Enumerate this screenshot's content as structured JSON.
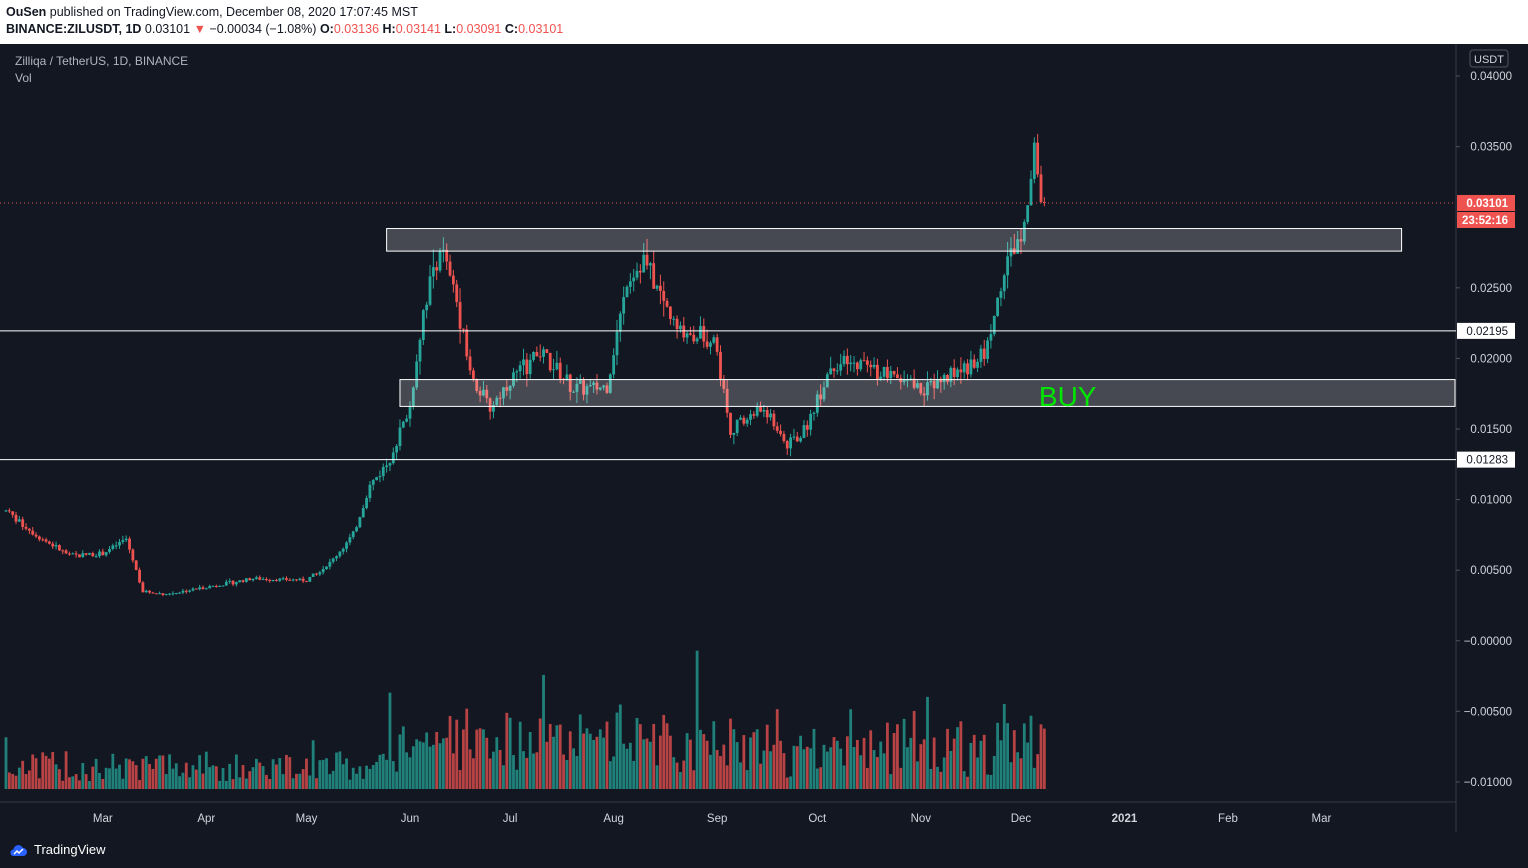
{
  "header": {
    "publisher": "OuSen",
    "publish_text": "published on TradingView.com, December 08, 2020 17:07:45 MST",
    "symbol": "BINANCE:ZILUSDT, 1D",
    "last": "0.03101",
    "arrow": "▼",
    "change": "−0.00034 (−1.08%)",
    "o_label": "O:",
    "o_val": "0.03136",
    "h_label": "H:",
    "h_val": "0.03141",
    "l_label": "L:",
    "l_val": "0.03091",
    "c_label": "C:",
    "c_val": "0.03101"
  },
  "legend": {
    "title": "Zilliqa / TetherUS, 1D, BINANCE",
    "vol": "Vol"
  },
  "footer": {
    "brand": "TradingView"
  },
  "colors": {
    "up": "#26a69a",
    "down": "#ef5350",
    "buy": "#00e600",
    "bg": "#131722",
    "axis_text": "#d1d4dc"
  },
  "chart_data": {
    "type": "candlestick",
    "currency": "USDT",
    "y_ticks": [
      "0.04000",
      "0.03500",
      "0.02500",
      "0.02000",
      "0.01500",
      "0.01000",
      "0.00500",
      "−0.00000",
      "−0.00500",
      "−0.01000"
    ],
    "y_tick_values": [
      0.04,
      0.035,
      0.025,
      0.02,
      0.015,
      0.01,
      0.005,
      0,
      -0.005,
      -0.01
    ],
    "ylim": [
      -0.0105,
      0.0405
    ],
    "x_ticks": [
      "Mar",
      "Apr",
      "May",
      "Jun",
      "Jul",
      "Aug",
      "Sep",
      "Oct",
      "Nov",
      "Dec",
      "2021",
      "Feb",
      "Mar"
    ],
    "x_tick_dates": [
      "2020-03-01",
      "2020-04-01",
      "2020-05-01",
      "2020-06-01",
      "2020-07-01",
      "2020-08-01",
      "2020-09-01",
      "2020-10-01",
      "2020-11-01",
      "2020-12-01",
      "2021-01-01",
      "2021-02-01",
      "2021-03-01"
    ],
    "x_range": [
      "2020-02-01",
      "2021-04-10"
    ],
    "series_keypoints": [
      [
        "2020-02-01",
        0.0092
      ],
      [
        "2020-02-10",
        0.0075
      ],
      [
        "2020-02-20",
        0.006
      ],
      [
        "2020-03-01",
        0.0062
      ],
      [
        "2020-03-08",
        0.0072
      ],
      [
        "2020-03-13",
        0.0035
      ],
      [
        "2020-03-20",
        0.0033
      ],
      [
        "2020-04-01",
        0.0038
      ],
      [
        "2020-04-15",
        0.0044
      ],
      [
        "2020-05-01",
        0.0043
      ],
      [
        "2020-05-08",
        0.0055
      ],
      [
        "2020-05-15",
        0.0075
      ],
      [
        "2020-05-20",
        0.011
      ],
      [
        "2020-05-25",
        0.0125
      ],
      [
        "2020-06-01",
        0.0165
      ],
      [
        "2020-06-05",
        0.0235
      ],
      [
        "2020-06-10",
        0.028
      ],
      [
        "2020-06-15",
        0.024
      ],
      [
        "2020-06-20",
        0.0185
      ],
      [
        "2020-06-25",
        0.0165
      ],
      [
        "2020-07-01",
        0.0185
      ],
      [
        "2020-07-10",
        0.0205
      ],
      [
        "2020-07-20",
        0.0178
      ],
      [
        "2020-07-30",
        0.018
      ],
      [
        "2020-08-05",
        0.0255
      ],
      [
        "2020-08-10",
        0.027
      ],
      [
        "2020-08-20",
        0.022
      ],
      [
        "2020-08-31",
        0.0215
      ],
      [
        "2020-09-05",
        0.015
      ],
      [
        "2020-09-15",
        0.0165
      ],
      [
        "2020-09-22",
        0.0138
      ],
      [
        "2020-09-27",
        0.0148
      ],
      [
        "2020-10-05",
        0.0195
      ],
      [
        "2020-10-15",
        0.0195
      ],
      [
        "2020-10-25",
        0.0185
      ],
      [
        "2020-11-01",
        0.0178
      ],
      [
        "2020-11-10",
        0.0188
      ],
      [
        "2020-11-20",
        0.0202
      ],
      [
        "2020-11-25",
        0.025
      ],
      [
        "2020-11-28",
        0.0275
      ],
      [
        "2020-12-01",
        0.029
      ],
      [
        "2020-12-05",
        0.0345
      ],
      [
        "2020-12-07",
        0.0314
      ],
      [
        "2020-12-08",
        0.031
      ]
    ],
    "volume_axis": "shares price axis (lower part of pane)",
    "horizontal_lines": [
      {
        "value": 0.02195,
        "label": "0.02195",
        "color": "#ffffff"
      },
      {
        "value": 0.01283,
        "label": "0.01283",
        "color": "#ffffff"
      }
    ],
    "last_price": {
      "value": 0.03101,
      "label": "0.03101",
      "countdown": "23:52:16",
      "color": "#ef5350"
    },
    "zones": [
      {
        "name": "resistance-zone",
        "from": "2020-05-25",
        "to": "2021-03-25",
        "top": 0.0292,
        "bottom": 0.0276
      },
      {
        "name": "buy-zone",
        "from": "2020-05-29",
        "to": "2021-04-10",
        "top": 0.0185,
        "bottom": 0.0166
      }
    ],
    "annotations": [
      {
        "text": "BUY",
        "date": "2020-12-15",
        "value": 0.01735,
        "color": "#00e600"
      }
    ],
    "grid": false,
    "legend_position": "top-left"
  }
}
